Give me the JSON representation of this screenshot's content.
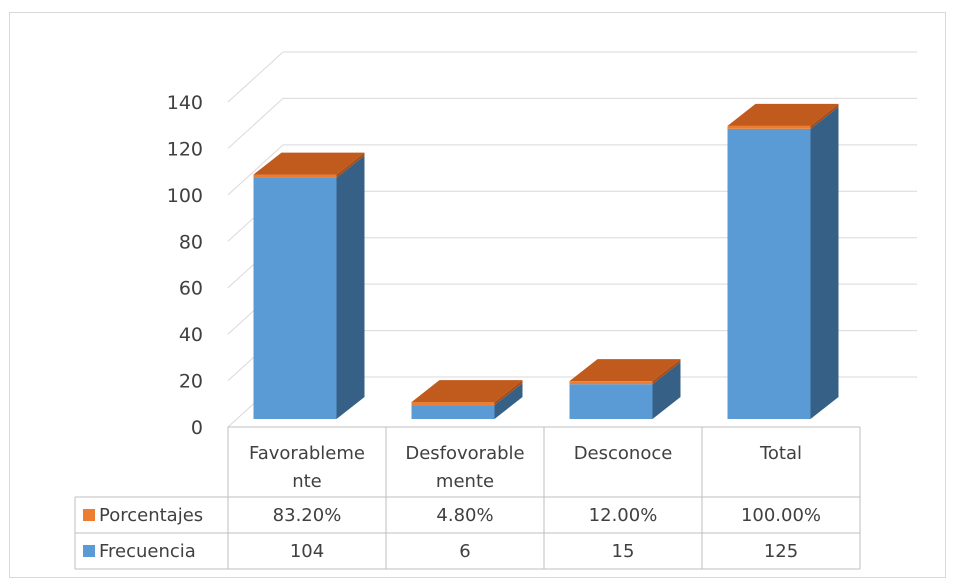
{
  "chart_data": {
    "type": "bar",
    "style": "3d-stacked-with-data-table",
    "categories": [
      [
        "Favorableme",
        "nte"
      ],
      [
        "Desfovorable",
        "mente"
      ],
      [
        "Desconoce"
      ],
      [
        "Total"
      ]
    ],
    "series": [
      {
        "name": "Porcentajes",
        "color": "#ed7d31",
        "values": [
          0.832,
          0.048,
          0.12,
          1.0
        ],
        "labels": [
          "83.20%",
          "4.80%",
          "12.00%",
          "100.00%"
        ]
      },
      {
        "name": "Frecuencia",
        "color": "#5b9bd5",
        "values": [
          104,
          6,
          15,
          125
        ],
        "labels": [
          "104",
          "6",
          "15",
          "125"
        ]
      }
    ],
    "y_ticks": [
      "0",
      "20",
      "40",
      "60",
      "80",
      "100",
      "120",
      "140"
    ],
    "ylim": [
      0,
      140
    ],
    "grid": true,
    "legend": "data-table-left"
  }
}
